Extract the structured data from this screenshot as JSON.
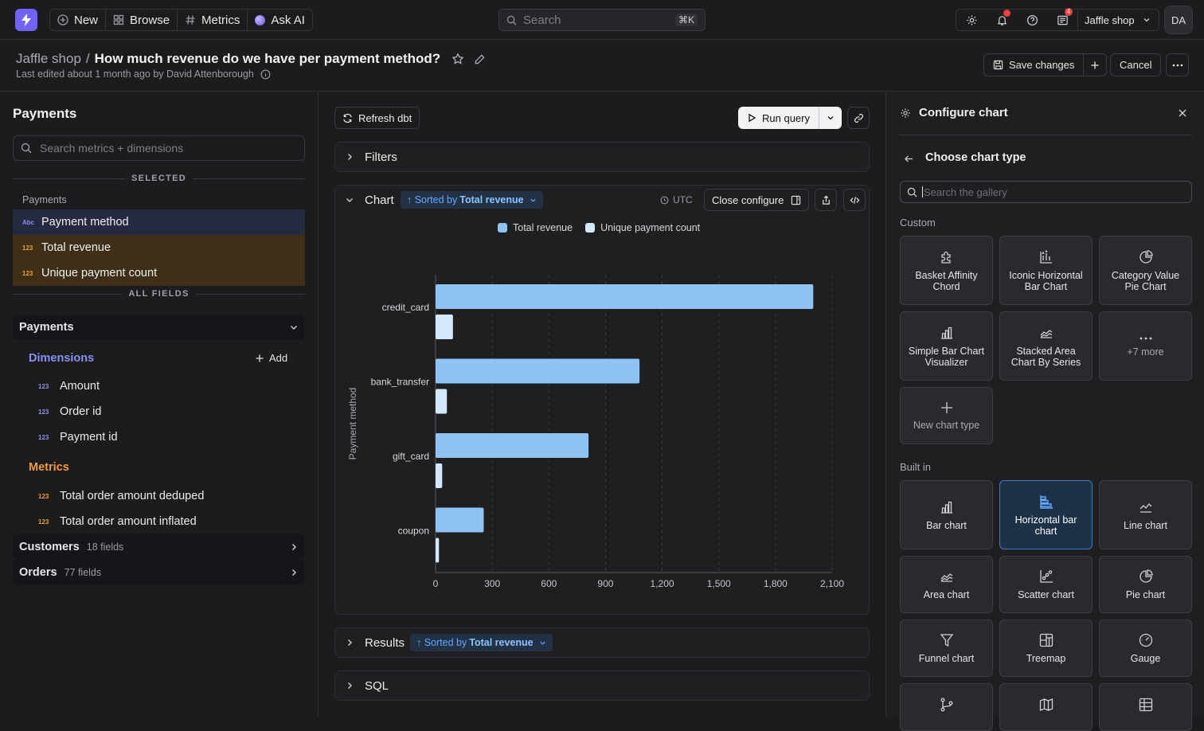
{
  "nav": {
    "new": "New",
    "browse": "Browse",
    "metrics": "Metrics",
    "ask_ai": "Ask AI",
    "search_placeholder": "Search",
    "search_shortcut": "⌘K",
    "notif_count": "4",
    "org": "Jaffle shop",
    "avatar": "DA"
  },
  "header": {
    "space": "Jaffle shop",
    "sep": "/",
    "title": "How much revenue do we have per payment method?",
    "last_edited": "Last edited about 1 month ago by David Attenborough",
    "save": "Save changes",
    "cancel": "Cancel"
  },
  "explorer": {
    "table": "Payments",
    "search_placeholder": "Search metrics + dimensions",
    "selected_label": "SELECTED",
    "selected_group": "Payments",
    "selected": [
      {
        "type": "Abc",
        "label": "Payment method"
      },
      {
        "type": "123",
        "label": "Total revenue"
      },
      {
        "type": "123",
        "label": "Unique payment count"
      }
    ],
    "all_fields_label": "ALL FIELDS",
    "table_name": "Payments",
    "dimensions_label": "Dimensions",
    "add_label": "Add",
    "dimensions": [
      "Amount",
      "Order id",
      "Payment id"
    ],
    "metrics_label": "Metrics",
    "metrics": [
      "Total order amount deduped",
      "Total order amount inflated"
    ],
    "joined": [
      {
        "name": "Customers",
        "count": "18 fields"
      },
      {
        "name": "Orders",
        "count": "77 fields"
      }
    ],
    "type_num": "123"
  },
  "query": {
    "refresh": "Refresh dbt",
    "run": "Run query",
    "filters": "Filters",
    "chart": "Chart",
    "sort_prefix": "↑ Sorted by",
    "sort_field": "Total revenue",
    "timezone": "UTC",
    "close_configure": "Close configure",
    "results": "Results",
    "sql": "SQL"
  },
  "chart_data": {
    "type": "bar",
    "orientation": "horizontal",
    "categories": [
      "credit_card",
      "bank_transfer",
      "gift_card",
      "coupon"
    ],
    "series": [
      {
        "name": "Total revenue",
        "values": [
          2000,
          1080,
          810,
          255
        ],
        "color": "#8ec3f3"
      },
      {
        "name": "Unique payment count",
        "values": [
          92,
          60,
          35,
          18
        ],
        "color": "#d3e8fd"
      }
    ],
    "ylabel": "Payment method",
    "xlim": [
      0,
      2100
    ],
    "xticks": [
      "0",
      "300",
      "600",
      "900",
      "1,200",
      "1,500",
      "1,800",
      "2,100"
    ],
    "grid": true,
    "legend_position": "top"
  },
  "config": {
    "title": "Configure chart",
    "choose": "Choose chart type",
    "search_placeholder": "Search the gallery",
    "custom_label": "Custom",
    "custom": [
      {
        "label": "Basket Affinity Chord",
        "icon": "puzzle-icon"
      },
      {
        "label": "Iconic Horizontal Bar Chart",
        "icon": "chart-bars-icon"
      },
      {
        "label": "Category Value Pie Chart",
        "icon": "pie-icon"
      },
      {
        "label": "Simple Bar Chart Visualizer",
        "icon": "bar-chart-icon"
      },
      {
        "label": "Stacked Area Chart By Series",
        "icon": "area-chart-icon"
      },
      {
        "label": "+7 more",
        "icon": "dots-icon"
      },
      {
        "label": "New chart type",
        "icon": "plus-icon"
      }
    ],
    "builtin_label": "Built in",
    "builtin": [
      {
        "label": "Bar chart",
        "icon": "bar-chart-icon"
      },
      {
        "label": "Horizontal bar chart",
        "icon": "horizontal-bar-icon",
        "selected": true
      },
      {
        "label": "Line chart",
        "icon": "line-chart-icon"
      },
      {
        "label": "Area chart",
        "icon": "area-chart-icon"
      },
      {
        "label": "Scatter chart",
        "icon": "scatter-icon"
      },
      {
        "label": "Pie chart",
        "icon": "pie-icon"
      },
      {
        "label": "Funnel chart",
        "icon": "funnel-icon"
      },
      {
        "label": "Treemap",
        "icon": "treemap-icon"
      },
      {
        "label": "Gauge",
        "icon": "gauge-icon"
      }
    ]
  },
  "colors": {
    "accent": "#7262ff",
    "dimension": "#8a8ff0",
    "metric": "#ef9a3c",
    "selected_dimension_bg": "#262a40",
    "selected_metric_bg": "#3f2f17",
    "link_blue": "#62a9ff"
  }
}
